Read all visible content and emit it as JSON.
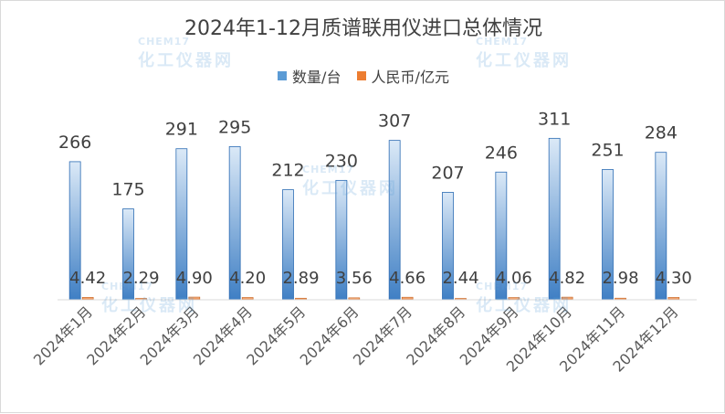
{
  "chart_data": {
    "type": "bar",
    "title": "2024年1-12月质谱联用仪进口总体情况",
    "categories": [
      "2024年1月",
      "2024年2月",
      "2024年3月",
      "2024年4月",
      "2024年5月",
      "2024年6月",
      "2024年7月",
      "2024年8月",
      "2024年9月",
      "2024年10月",
      "2024年11月",
      "2024年12月"
    ],
    "series": [
      {
        "name": "数量/台",
        "values": [
          266,
          175,
          291,
          295,
          212,
          230,
          307,
          207,
          246,
          311,
          251,
          284
        ],
        "labels": [
          "266",
          "175",
          "291",
          "295",
          "212",
          "230",
          "307",
          "207",
          "246",
          "311",
          "251",
          "284"
        ],
        "color": "#5b9bd5"
      },
      {
        "name": "人民币/亿元",
        "values": [
          4.42,
          2.29,
          4.9,
          4.2,
          2.89,
          3.56,
          4.66,
          2.44,
          4.06,
          4.82,
          2.98,
          4.3
        ],
        "labels": [
          "4.42",
          "2.29",
          "4.90",
          "4.20",
          "2.89",
          "3.56",
          "4.66",
          "2.44",
          "4.06",
          "4.82",
          "2.98",
          "4.30"
        ],
        "color": "#ed7d31"
      }
    ],
    "legend_position": "top",
    "grid": false
  },
  "watermark": {
    "brand": "CHEM17",
    "tagline": "化工仪器网"
  }
}
